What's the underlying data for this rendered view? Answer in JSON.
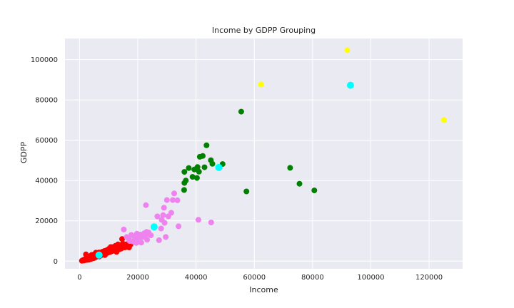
{
  "chart_data": {
    "type": "scatter",
    "title": "Income by GDPP Grouping",
    "xlabel": "Income",
    "ylabel": "GDPP",
    "xlim": [
      -5000,
      131500
    ],
    "ylim": [
      -3800,
      110500
    ],
    "xticks": [
      0,
      20000,
      40000,
      60000,
      80000,
      100000,
      120000
    ],
    "yticks": [
      0,
      20000,
      40000,
      60000,
      80000,
      100000
    ],
    "grid": true,
    "colors": {
      "background": "#eaeaf2",
      "grid": "#ffffff",
      "text": "#262626",
      "cluster_low": "#ff0000",
      "cluster_mid": "#ee82ee",
      "cluster_high": "#008000",
      "cluster_top": "#ffff00",
      "centroid": "#00ffff"
    },
    "series": [
      {
        "color": "#ff0000",
        "points": [
          [
            800,
            200
          ],
          [
            1100,
            400
          ],
          [
            1300,
            600
          ],
          [
            1500,
            300
          ],
          [
            1700,
            800
          ],
          [
            1900,
            500
          ],
          [
            2100,
            1200
          ],
          [
            2300,
            900
          ],
          [
            2500,
            600
          ],
          [
            2200,
            3400
          ],
          [
            2800,
            2200
          ],
          [
            3000,
            1500
          ],
          [
            3200,
            700
          ],
          [
            3500,
            1800
          ],
          [
            3800,
            2600
          ],
          [
            4000,
            1100
          ],
          [
            4200,
            3100
          ],
          [
            4500,
            2000
          ],
          [
            4800,
            1400
          ],
          [
            5000,
            3400
          ],
          [
            5300,
            2700
          ],
          [
            5500,
            1900
          ],
          [
            5800,
            3300
          ],
          [
            6000,
            2500
          ],
          [
            6300,
            3600
          ],
          [
            6500,
            3000
          ],
          [
            6800,
            2300
          ],
          [
            7000,
            4000
          ],
          [
            7300,
            2800
          ],
          [
            7500,
            3400
          ],
          [
            7800,
            4600
          ],
          [
            8000,
            3800
          ],
          [
            8300,
            3200
          ],
          [
            8500,
            5000
          ],
          [
            8800,
            4400
          ],
          [
            9000,
            3600
          ],
          [
            9300,
            5400
          ],
          [
            9500,
            4800
          ],
          [
            9800,
            4200
          ],
          [
            10000,
            6000
          ],
          [
            10300,
            5200
          ],
          [
            10500,
            4500
          ],
          [
            10800,
            6600
          ],
          [
            11000,
            5600
          ],
          [
            11300,
            5000
          ],
          [
            11500,
            7000
          ],
          [
            11800,
            6200
          ],
          [
            12000,
            5400
          ],
          [
            12300,
            7600
          ],
          [
            12500,
            6800
          ],
          [
            12800,
            6000
          ],
          [
            13000,
            7400
          ],
          [
            13300,
            6500
          ],
          [
            13500,
            5800
          ],
          [
            13800,
            7800
          ],
          [
            14000,
            7000
          ],
          [
            14300,
            6200
          ],
          [
            14500,
            8200
          ],
          [
            14800,
            7200
          ],
          [
            15000,
            8600
          ],
          [
            15300,
            7600
          ],
          [
            15500,
            6800
          ],
          [
            15800,
            8000
          ],
          [
            16000,
            7000
          ],
          [
            16300,
            8400
          ],
          [
            16500,
            7800
          ],
          [
            17000,
            6800
          ],
          [
            17500,
            8200
          ],
          [
            14600,
            11000
          ],
          [
            9700,
            5200
          ],
          [
            10700,
            7000
          ],
          [
            12700,
            4600
          ],
          [
            11900,
            6600
          ],
          [
            13200,
            8300
          ],
          [
            8700,
            3000
          ],
          [
            6700,
            4300
          ],
          [
            5600,
            4200
          ]
        ]
      },
      {
        "color": "#ee82ee",
        "points": [
          [
            15200,
            15700
          ],
          [
            16200,
            12000
          ],
          [
            16800,
            11200
          ],
          [
            17200,
            10000
          ],
          [
            17800,
            13000
          ],
          [
            18200,
            9800
          ],
          [
            18700,
            12200
          ],
          [
            19200,
            11000
          ],
          [
            19700,
            13600
          ],
          [
            20000,
            12400
          ],
          [
            20300,
            10800
          ],
          [
            20800,
            13200
          ],
          [
            21200,
            9200
          ],
          [
            21700,
            12000
          ],
          [
            22200,
            13800
          ],
          [
            22700,
            12700
          ],
          [
            23200,
            10600
          ],
          [
            23700,
            14200
          ],
          [
            22800,
            27800
          ],
          [
            26700,
            22200
          ],
          [
            27300,
            10400
          ],
          [
            28000,
            16200
          ],
          [
            28700,
            22800
          ],
          [
            29000,
            26500
          ],
          [
            29200,
            19000
          ],
          [
            29600,
            12000
          ],
          [
            30000,
            30300
          ],
          [
            30500,
            22200
          ],
          [
            32000,
            30300
          ],
          [
            32500,
            33600
          ],
          [
            33600,
            30200
          ],
          [
            34000,
            17300
          ],
          [
            40800,
            20500
          ],
          [
            45200,
            19200
          ],
          [
            19500,
            9000
          ],
          [
            23000,
            14500
          ],
          [
            24500,
            12800
          ],
          [
            28200,
            20500
          ],
          [
            31500,
            24000
          ]
        ]
      },
      {
        "color": "#008000",
        "points": [
          [
            35900,
            35300
          ],
          [
            36000,
            38800
          ],
          [
            36000,
            44300
          ],
          [
            36500,
            40000
          ],
          [
            37500,
            46200
          ],
          [
            38800,
            41800
          ],
          [
            39400,
            45500
          ],
          [
            40300,
            41300
          ],
          [
            40500,
            46700
          ],
          [
            41000,
            44400
          ],
          [
            41300,
            51800
          ],
          [
            42300,
            52200
          ],
          [
            42900,
            46600
          ],
          [
            43600,
            57500
          ],
          [
            45100,
            50100
          ],
          [
            45600,
            48300
          ],
          [
            49100,
            48200
          ],
          [
            55500,
            74200
          ],
          [
            57300,
            34600
          ],
          [
            72300,
            46300
          ],
          [
            75500,
            38400
          ],
          [
            80600,
            35100
          ]
        ]
      },
      {
        "color": "#ffff00",
        "points": [
          [
            62300,
            87700
          ],
          [
            91900,
            104700
          ],
          [
            125100,
            70000
          ]
        ]
      },
      {
        "color": "#00ffff",
        "marker": "centroid",
        "points": [
          [
            6700,
            3000
          ],
          [
            25600,
            17000
          ],
          [
            47800,
            46500
          ],
          [
            93000,
            87300
          ]
        ]
      }
    ]
  }
}
